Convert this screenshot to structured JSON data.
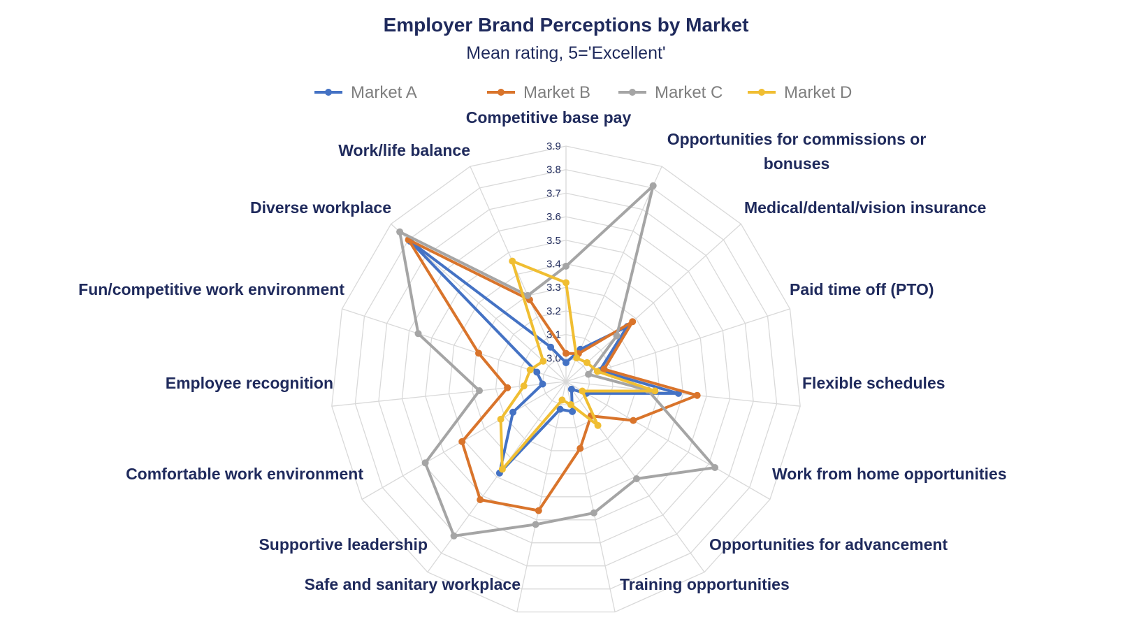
{
  "chart_data": {
    "type": "radar",
    "title": "Employer Brand Perceptions by Market",
    "subtitle": "Mean rating, 5='Excellent'",
    "categories": [
      "Competitive base pay",
      "Opportunities for commissions or bonuses",
      "Medical/dental/vision insurance",
      "Paid time off (PTO)",
      "Flexible schedules",
      "Work from home opportunities",
      "Opportunities for advancement",
      "Training opportunities",
      "Safe and sanitary workplace",
      "Supportive leadership",
      "Comfortable work environment",
      "Employee recognition",
      "Fun/competitive work environment",
      "Diverse workplace",
      "Work/life balance"
    ],
    "range": [
      2.9,
      3.9
    ],
    "ticks": [
      "3.0",
      "3.1",
      "3.2",
      "3.3",
      "3.4",
      "3.5",
      "3.6",
      "3.7",
      "3.8",
      "3.9"
    ],
    "legend_position": "top",
    "grid": true,
    "series": [
      {
        "name": "Market A",
        "color": "#4472c4",
        "values": [
          2.98,
          3.05,
          3.25,
          3.05,
          3.38,
          3.0,
          2.94,
          3.03,
          3.02,
          3.38,
          3.16,
          3.0,
          3.03,
          3.79,
          3.06
        ]
      },
      {
        "name": "Market B",
        "color": "#d9742b",
        "values": [
          3.02,
          3.03,
          3.28,
          3.07,
          3.46,
          3.23,
          3.08,
          3.19,
          3.46,
          3.52,
          3.41,
          3.15,
          3.29,
          3.8,
          3.28
        ]
      },
      {
        "name": "Market C",
        "color": "#a5a5a5",
        "values": [
          3.39,
          3.81,
          3.19,
          3.0,
          3.25,
          3.63,
          3.41,
          3.47,
          3.52,
          3.71,
          3.59,
          3.27,
          3.56,
          3.85,
          3.3
        ]
      },
      {
        "name": "Market D",
        "color": "#f0be32",
        "values": [
          3.32,
          3.01,
          3.02,
          3.04,
          3.28,
          2.98,
          3.13,
          3.0,
          2.98,
          3.36,
          3.22,
          3.08,
          3.06,
          3.03,
          3.46
        ]
      }
    ]
  }
}
